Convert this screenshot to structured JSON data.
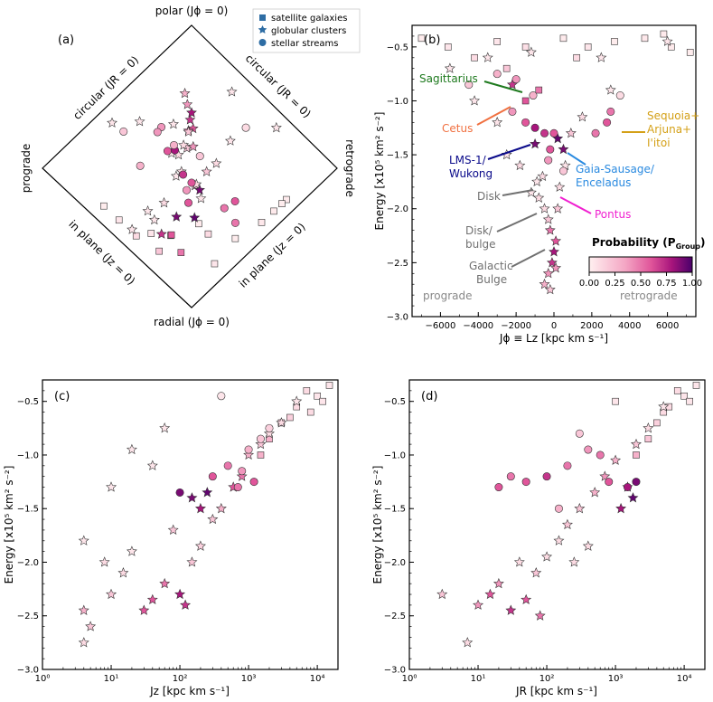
{
  "colors": {
    "prob_low": "#fff0f0",
    "prob_mid": "#e0559a",
    "prob_high": "#49006a",
    "sagittarius": "#1f7a1f",
    "cetus": "#f07040",
    "lms1": "#0a0a8a",
    "gaia": "#2a8ae0",
    "pontus": "#f020d0",
    "sequoia": "#d4a017",
    "disk": "#707070"
  },
  "legend": {
    "items": [
      {
        "marker": "square",
        "label": "satellite galaxies"
      },
      {
        "marker": "star",
        "label": "globular clusters"
      },
      {
        "marker": "circle",
        "label": "stellar streams"
      }
    ]
  },
  "panel_a": {
    "label": "(a)",
    "top": "polar (Jϕ = 0)",
    "bottom": "radial (Jϕ = 0)",
    "left": "prograde",
    "right": "retrograde",
    "edge_ul": "circular (JR = 0)",
    "edge_ur": "circular (JR = 0)",
    "edge_ll": "in plane (Jz = 0)",
    "edge_lr": "in plane (Jz = 0)"
  },
  "panel_b": {
    "label": "(b)",
    "xlabel": "Jϕ ≡ Lz [kpc km s⁻¹]",
    "ylabel": "Energy [x10⁵ km² s⁻²]",
    "prograde": "prograde",
    "retrograde": "retrograde",
    "colorbar_title": "Probability (P",
    "colorbar_sub": "Group",
    "colorbar_close": ")",
    "colorbar_ticks": [
      "0.00",
      "0.25",
      "0.50",
      "0.75",
      "1.00"
    ],
    "annotations": {
      "sagittarius": "Sagittarius",
      "cetus": "Cetus",
      "lms1_a": "LMS-1/",
      "lms1_b": "Wukong",
      "gaia_a": "Gaia-Sausage/",
      "gaia_b": "Enceladus",
      "pontus": "Pontus",
      "seq_a": "Sequoia+",
      "seq_b": "Arjuna+",
      "seq_c": "I'itoi",
      "disk": "Disk",
      "diskb_a": "Disk/",
      "diskb_b": "bulge",
      "gb_a": "Galactic",
      "gb_b": "Bulge"
    }
  },
  "panel_c": {
    "label": "(c)",
    "xlabel": "Jz [kpc km s⁻¹]",
    "ylabel": "Energy [x10⁵ km² s⁻²]"
  },
  "panel_d": {
    "label": "(d)",
    "xlabel": "JR [kpc km s⁻¹]",
    "ylabel": "Energy [x10⁵ km² s⁻²]"
  },
  "chart_data": [
    {
      "type": "scatter",
      "title": "(b)",
      "xlabel": "Jϕ ≡ Lz [kpc km s⁻¹]",
      "ylabel": "Energy [x10⁵ km² s⁻²]",
      "xlim": [
        -7500,
        7500
      ],
      "ylim": [
        -3.0,
        -0.3
      ],
      "xticks": [
        -6000,
        -4000,
        -2000,
        0,
        2000,
        4000,
        6000
      ],
      "yticks": [
        -3.0,
        -2.5,
        -2.0,
        -1.5,
        -1.0,
        -0.5
      ],
      "series": [
        {
          "name": "satellite galaxies",
          "marker": "square",
          "points": [
            [
              -7000,
              -0.42,
              0.02
            ],
            [
              -5600,
              -0.5,
              0.05
            ],
            [
              -4200,
              -0.6,
              0.1
            ],
            [
              -3000,
              -0.45,
              0.05
            ],
            [
              -1500,
              -0.5,
              0.08
            ],
            [
              500,
              -0.42,
              0.03
            ],
            [
              1800,
              -0.5,
              0.05
            ],
            [
              3200,
              -0.45,
              0.02
            ],
            [
              4800,
              -0.42,
              0.04
            ],
            [
              6200,
              -0.5,
              0.03
            ],
            [
              7200,
              -0.55,
              0.02
            ],
            [
              -2500,
              -0.7,
              0.2
            ],
            [
              -800,
              -0.9,
              0.5
            ],
            [
              -1500,
              -1.0,
              0.6
            ],
            [
              1200,
              -0.6,
              0.1
            ],
            [
              5800,
              -0.38,
              0.03
            ]
          ]
        },
        {
          "name": "globular clusters",
          "marker": "star",
          "points": [
            [
              -500,
              -2.7,
              0.3
            ],
            [
              -300,
              -2.6,
              0.4
            ],
            [
              -100,
              -2.5,
              0.7
            ],
            [
              0,
              -2.4,
              0.8
            ],
            [
              100,
              -2.3,
              0.6
            ],
            [
              -200,
              -2.2,
              0.5
            ],
            [
              -300,
              -2.1,
              0.2
            ],
            [
              -500,
              -2.0,
              0.1
            ],
            [
              -800,
              -1.9,
              0.1
            ],
            [
              -1200,
              -1.85,
              0.05
            ],
            [
              -900,
              -1.75,
              0.05
            ],
            [
              -600,
              -1.7,
              0.1
            ],
            [
              200,
              -2.0,
              0.2
            ],
            [
              300,
              -1.8,
              0.1
            ],
            [
              600,
              -1.6,
              0.05
            ],
            [
              -1800,
              -1.6,
              0.1
            ],
            [
              -2500,
              -1.5,
              0.05
            ],
            [
              -3000,
              -1.2,
              0.05
            ],
            [
              -4200,
              -1.0,
              0.05
            ],
            [
              -2200,
              -0.85,
              0.7
            ],
            [
              -1000,
              -1.4,
              0.9
            ],
            [
              200,
              -1.35,
              0.95
            ],
            [
              500,
              -1.45,
              0.9
            ],
            [
              900,
              -1.3,
              0.2
            ],
            [
              1500,
              -1.15,
              0.1
            ],
            [
              3000,
              -0.9,
              0.05
            ],
            [
              6000,
              -0.45,
              0.05
            ],
            [
              -5500,
              -0.7,
              0.05
            ],
            [
              -3500,
              -0.6,
              0.05
            ],
            [
              -1200,
              -0.55,
              0.05
            ],
            [
              2500,
              -0.6,
              0.05
            ],
            [
              -200,
              -2.75,
              0.2
            ],
            [
              100,
              -2.55,
              0.4
            ]
          ]
        },
        {
          "name": "stellar streams",
          "marker": "circle",
          "points": [
            [
              -2000,
              -0.8,
              0.4
            ],
            [
              -2200,
              -1.1,
              0.4
            ],
            [
              -1500,
              -1.2,
              0.6
            ],
            [
              -1000,
              -1.25,
              0.8
            ],
            [
              -500,
              -1.3,
              0.7
            ],
            [
              0,
              -1.3,
              0.6
            ],
            [
              -200,
              -1.45,
              0.6
            ],
            [
              2800,
              -1.2,
              0.6
            ],
            [
              3000,
              -1.1,
              0.5
            ],
            [
              2200,
              -1.3,
              0.5
            ],
            [
              -300,
              -1.55,
              0.4
            ],
            [
              -3000,
              -0.75,
              0.3
            ],
            [
              -4500,
              -0.85,
              0.2
            ],
            [
              3500,
              -0.95,
              0.1
            ],
            [
              -1100,
              -0.95,
              0.3
            ],
            [
              500,
              -1.65,
              0.2
            ]
          ]
        }
      ]
    },
    {
      "type": "scatter",
      "title": "(c)",
      "xlabel": "Jz [kpc km s⁻¹]",
      "ylabel": "Energy [x10⁵ km² s⁻²]",
      "xscale": "log",
      "xlim": [
        1,
        20000
      ],
      "ylim": [
        -3.0,
        -0.3
      ],
      "xticks": [
        "10⁰",
        "10¹",
        "10²",
        "10³",
        "10⁴"
      ],
      "yticks": [
        -3.0,
        -2.5,
        -2.0,
        -1.5,
        -1.0,
        -0.5
      ],
      "series": [
        {
          "name": "satellite galaxies",
          "marker": "square",
          "points": [
            [
              15000,
              -0.35,
              0.05
            ],
            [
              10000,
              -0.45,
              0.05
            ],
            [
              7000,
              -0.4,
              0.1
            ],
            [
              5000,
              -0.55,
              0.1
            ],
            [
              3000,
              -0.7,
              0.2
            ],
            [
              2000,
              -0.85,
              0.3
            ],
            [
              8000,
              -0.6,
              0.1
            ],
            [
              12000,
              -0.5,
              0.05
            ],
            [
              4000,
              -0.65,
              0.15
            ],
            [
              1500,
              -1.0,
              0.3
            ]
          ]
        },
        {
          "name": "globular clusters",
          "marker": "star",
          "points": [
            [
              4,
              -2.75,
              0.1
            ],
            [
              4,
              -2.45,
              0.3
            ],
            [
              5,
              -2.6,
              0.2
            ],
            [
              4,
              -1.8,
              0.05
            ],
            [
              8,
              -2.0,
              0.1
            ],
            [
              10,
              -2.3,
              0.2
            ],
            [
              15,
              -2.1,
              0.1
            ],
            [
              20,
              -1.9,
              0.05
            ],
            [
              30,
              -2.45,
              0.6
            ],
            [
              40,
              -2.35,
              0.6
            ],
            [
              60,
              -2.2,
              0.5
            ],
            [
              80,
              -1.7,
              0.2
            ],
            [
              100,
              -2.3,
              0.8
            ],
            [
              120,
              -2.4,
              0.7
            ],
            [
              150,
              -2.0,
              0.2
            ],
            [
              200,
              -1.85,
              0.15
            ],
            [
              300,
              -1.6,
              0.2
            ],
            [
              400,
              -1.5,
              0.3
            ],
            [
              600,
              -1.3,
              0.6
            ],
            [
              800,
              -1.2,
              0.5
            ],
            [
              1000,
              -1.0,
              0.3
            ],
            [
              1500,
              -0.9,
              0.2
            ],
            [
              2000,
              -0.8,
              0.1
            ],
            [
              3000,
              -0.7,
              0.1
            ],
            [
              5000,
              -0.5,
              0.05
            ],
            [
              150,
              -1.4,
              0.9
            ],
            [
              200,
              -1.5,
              0.8
            ],
            [
              250,
              -1.35,
              0.95
            ],
            [
              40,
              -1.1,
              0.05
            ],
            [
              20,
              -0.95,
              0.05
            ],
            [
              60,
              -0.75,
              0.05
            ],
            [
              10,
              -1.3,
              0.05
            ]
          ]
        },
        {
          "name": "stellar streams",
          "marker": "circle",
          "points": [
            [
              100,
              -1.35,
              0.9
            ],
            [
              300,
              -1.2,
              0.6
            ],
            [
              500,
              -1.1,
              0.5
            ],
            [
              800,
              -1.15,
              0.4
            ],
            [
              1000,
              -0.95,
              0.3
            ],
            [
              1500,
              -0.85,
              0.2
            ],
            [
              2000,
              -0.75,
              0.15
            ],
            [
              400,
              -0.45,
              0.05
            ],
            [
              700,
              -1.3,
              0.5
            ],
            [
              1200,
              -1.25,
              0.6
            ]
          ]
        }
      ]
    },
    {
      "type": "scatter",
      "title": "(d)",
      "xlabel": "JR [kpc km s⁻¹]",
      "ylabel": "Energy [x10⁵ km² s⁻²]",
      "xscale": "log",
      "xlim": [
        1,
        20000
      ],
      "ylim": [
        -3.0,
        -0.3
      ],
      "xticks": [
        "10⁰",
        "10¹",
        "10²",
        "10³",
        "10⁴"
      ],
      "yticks": [
        -3.0,
        -2.5,
        -2.0,
        -1.5,
        -1.0,
        -0.5
      ],
      "series": [
        {
          "name": "satellite galaxies",
          "marker": "square",
          "points": [
            [
              15000,
              -0.35,
              0.05
            ],
            [
              10000,
              -0.45,
              0.05
            ],
            [
              8000,
              -0.4,
              0.1
            ],
            [
              6000,
              -0.55,
              0.1
            ],
            [
              4000,
              -0.7,
              0.15
            ],
            [
              3000,
              -0.85,
              0.2
            ],
            [
              12000,
              -0.5,
              0.05
            ],
            [
              5000,
              -0.6,
              0.1
            ],
            [
              2000,
              -1.0,
              0.3
            ],
            [
              1000,
              -0.5,
              0.05
            ]
          ]
        },
        {
          "name": "globular clusters",
          "marker": "star",
          "points": [
            [
              3,
              -2.3,
              0.2
            ],
            [
              7,
              -2.75,
              0.1
            ],
            [
              10,
              -2.4,
              0.4
            ],
            [
              15,
              -2.3,
              0.6
            ],
            [
              20,
              -2.2,
              0.4
            ],
            [
              30,
              -2.45,
              0.7
            ],
            [
              40,
              -2.0,
              0.1
            ],
            [
              50,
              -2.35,
              0.6
            ],
            [
              70,
              -2.1,
              0.2
            ],
            [
              100,
              -1.95,
              0.1
            ],
            [
              150,
              -1.8,
              0.1
            ],
            [
              200,
              -1.65,
              0.2
            ],
            [
              300,
              -1.5,
              0.2
            ],
            [
              500,
              -1.35,
              0.3
            ],
            [
              700,
              -1.2,
              0.4
            ],
            [
              1000,
              -1.05,
              0.3
            ],
            [
              1500,
              -1.3,
              0.9
            ],
            [
              2000,
              -0.9,
              0.2
            ],
            [
              3000,
              -0.75,
              0.1
            ],
            [
              5000,
              -0.55,
              0.05
            ],
            [
              1200,
              -1.5,
              0.8
            ],
            [
              1800,
              -1.4,
              0.95
            ],
            [
              400,
              -1.85,
              0.1
            ],
            [
              250,
              -2.0,
              0.1
            ],
            [
              80,
              -2.5,
              0.5
            ]
          ]
        },
        {
          "name": "stellar streams",
          "marker": "circle",
          "points": [
            [
              20,
              -1.3,
              0.6
            ],
            [
              30,
              -1.2,
              0.5
            ],
            [
              50,
              -1.25,
              0.6
            ],
            [
              100,
              -1.2,
              0.7
            ],
            [
              200,
              -1.1,
              0.5
            ],
            [
              400,
              -0.95,
              0.4
            ],
            [
              600,
              -1.0,
              0.5
            ],
            [
              800,
              -1.25,
              0.6
            ],
            [
              2000,
              -1.25,
              0.9
            ],
            [
              1500,
              -1.3,
              0.8
            ],
            [
              300,
              -0.8,
              0.2
            ],
            [
              150,
              -1.5,
              0.3
            ]
          ]
        }
      ]
    }
  ]
}
